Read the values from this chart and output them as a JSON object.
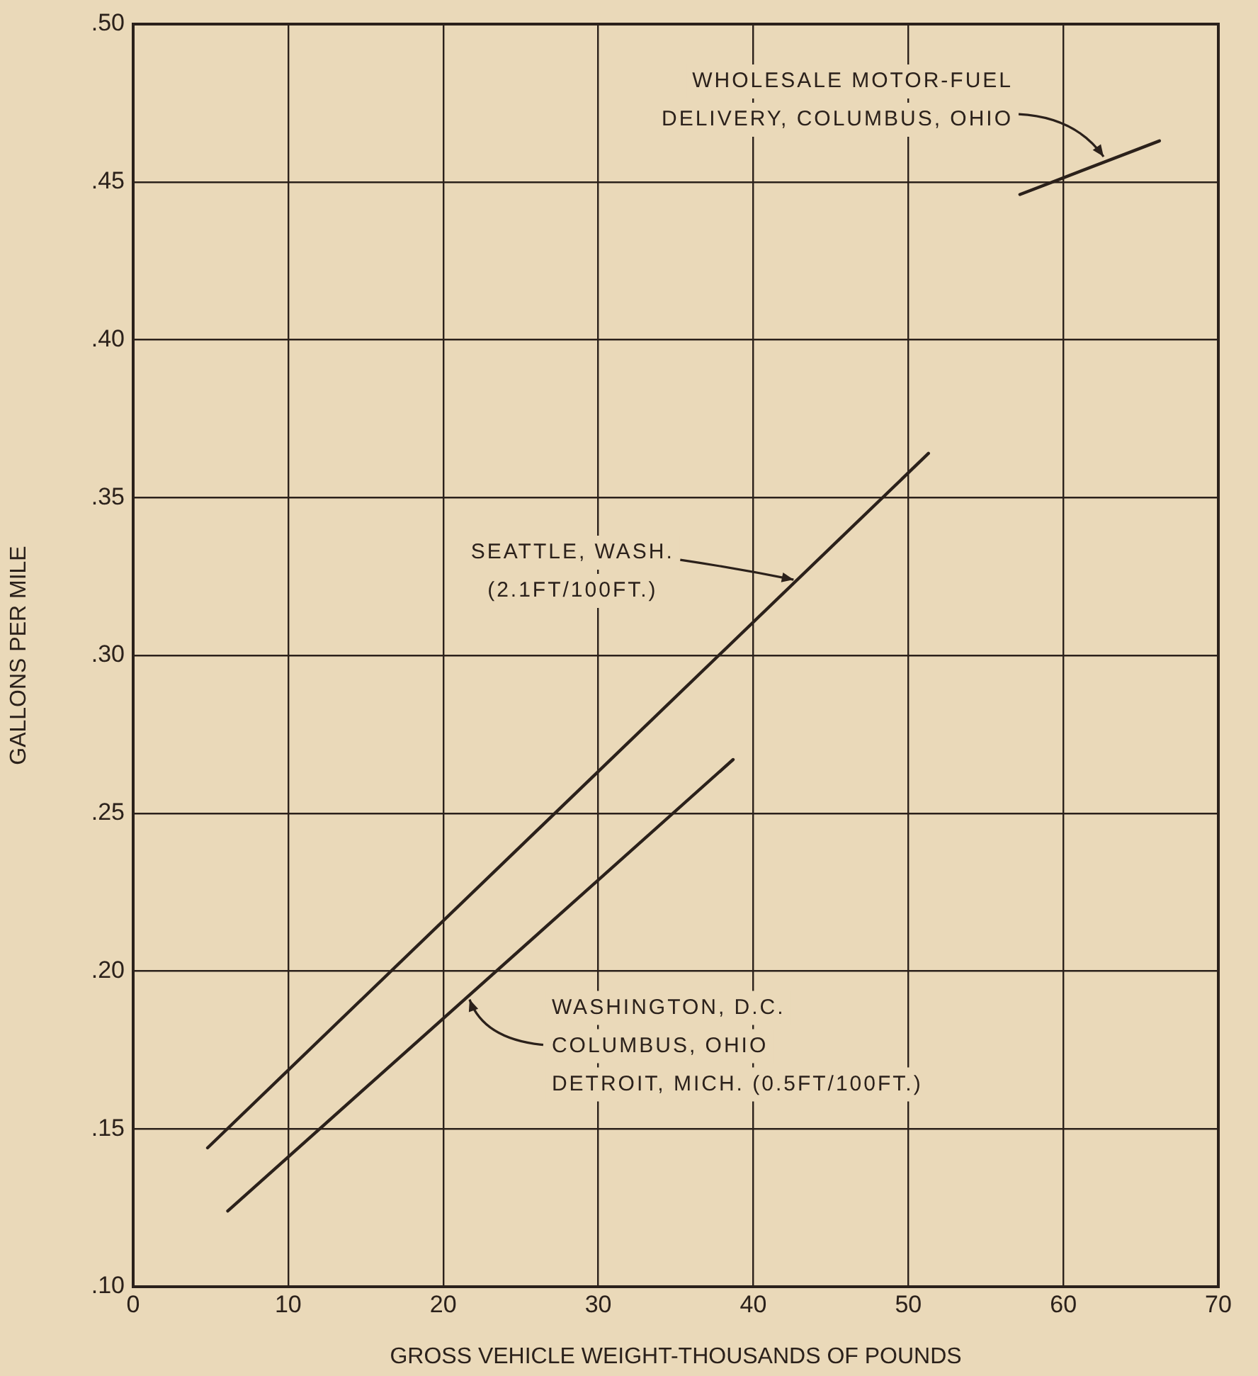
{
  "chart_data": {
    "type": "line",
    "xlabel": "GROSS VEHICLE WEIGHT-THOUSANDS OF POUNDS",
    "ylabel": "GALLONS PER MILE",
    "xlim": [
      0,
      70
    ],
    "ylim": [
      0.1,
      0.5
    ],
    "xticks": [
      0,
      10,
      20,
      30,
      40,
      50,
      60,
      70
    ],
    "yticks": [
      {
        "value": 0.1,
        "label": ".10"
      },
      {
        "value": 0.15,
        "label": ".15"
      },
      {
        "value": 0.2,
        "label": ".20"
      },
      {
        "value": 0.25,
        "label": ".25"
      },
      {
        "value": 0.3,
        "label": ".30"
      },
      {
        "value": 0.35,
        "label": ".35"
      },
      {
        "value": 0.4,
        "label": ".40"
      },
      {
        "value": 0.45,
        "label": ".45"
      },
      {
        "value": 0.5,
        "label": ".50"
      }
    ],
    "grid": true,
    "marker": "none",
    "line_style": "solid",
    "series": [
      {
        "color": "#2b211b",
        "x": [
          57.2,
          66.2
        ],
        "values": [
          0.446,
          0.463
        ]
      },
      {
        "color": "#2b211b",
        "x": [
          4.8,
          51.3
        ],
        "values": [
          0.144,
          0.364
        ]
      },
      {
        "color": "#2b211b",
        "x": [
          6.1,
          38.7
        ],
        "values": [
          0.124,
          0.267
        ]
      }
    ],
    "annotations": [
      {
        "text": "WHOLESALE MOTOR-FUEL\nDELIVERY, COLUMBUS, OHIO",
        "x": 62.6,
        "y": 0.458
      },
      {
        "text": "SEATTLE, WASH.\n(2.1FT/100FT.)",
        "x": 42.6,
        "y": 0.324
      },
      {
        "text": "WASHINGTON, D.C.\nCOLUMBUS, OHIO\nDETROIT, MICH. (0.5FT/100FT.)",
        "x": 21.7,
        "y": 0.191
      }
    ]
  }
}
